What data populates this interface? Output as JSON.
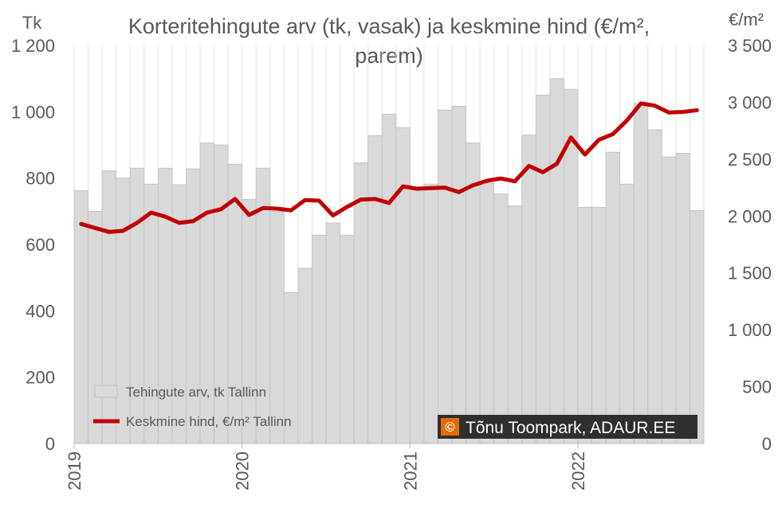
{
  "chart_data": {
    "type": "bar+line",
    "title_line1": "Korteritehingute arv (tk, vasak) ja keskmine hind (€/m²,",
    "title_line2": "parem)",
    "y_left_unit": "Tk",
    "y_right_unit": "€/m²",
    "y_left_range": [
      0,
      1200
    ],
    "y_right_range": [
      0,
      3500
    ],
    "y_left_ticks": [
      "0",
      "200",
      "400",
      "600",
      "800",
      "1 000",
      "1 200"
    ],
    "y_right_ticks": [
      "0",
      "500",
      "1 000",
      "1 500",
      "2 000",
      "2 500",
      "3 000",
      "3 500"
    ],
    "x_ticks": [
      "2019",
      "2020",
      "2021",
      "2022"
    ],
    "months": [
      "2019-01",
      "2019-02",
      "2019-03",
      "2019-04",
      "2019-05",
      "2019-06",
      "2019-07",
      "2019-08",
      "2019-09",
      "2019-10",
      "2019-11",
      "2019-12",
      "2020-01",
      "2020-02",
      "2020-03",
      "2020-04",
      "2020-05",
      "2020-06",
      "2020-07",
      "2020-08",
      "2020-09",
      "2020-10",
      "2020-11",
      "2020-12",
      "2021-01",
      "2021-02",
      "2021-03",
      "2021-04",
      "2021-05",
      "2021-06",
      "2021-07",
      "2021-08",
      "2021-09",
      "2021-10",
      "2021-11",
      "2021-12",
      "2022-01",
      "2022-02",
      "2022-03",
      "2022-04",
      "2022-05",
      "2022-06",
      "2022-07",
      "2022-08",
      "2022-09"
    ],
    "grid": "vertical",
    "legend_position": "bottom-left",
    "series": [
      {
        "name": "Tehingute arv, tk Tallinn",
        "type": "bar",
        "axis": "left",
        "color": "#d9d9d9",
        "values": [
          762,
          700,
          822,
          800,
          830,
          782,
          830,
          780,
          828,
          906,
          900,
          842,
          736,
          830,
          700,
          455,
          528,
          628,
          665,
          628,
          846,
          928,
          993,
          952,
          770,
          782,
          1005,
          1017,
          906,
          785,
          752,
          717,
          930,
          1050,
          1100,
          1068,
          712,
          712,
          878,
          782,
          1025,
          946,
          864,
          875,
          702
        ]
      },
      {
        "name": "Keskmine hind, €/m² Tallinn",
        "type": "line",
        "axis": "right",
        "color": "#c00000",
        "values": [
          1930,
          1895,
          1860,
          1870,
          1940,
          2030,
          1995,
          1940,
          1955,
          2030,
          2060,
          2150,
          2010,
          2070,
          2065,
          2050,
          2140,
          2135,
          2005,
          2080,
          2145,
          2150,
          2115,
          2260,
          2240,
          2245,
          2250,
          2210,
          2270,
          2310,
          2330,
          2305,
          2440,
          2385,
          2460,
          2690,
          2540,
          2670,
          2720,
          2840,
          2990,
          2970,
          2910,
          2915,
          2930
        ]
      }
    ]
  },
  "credit": {
    "icon": "©",
    "text": "Tõnu Toompark, ADAUR.EE",
    "icon_color": "#e36c0a",
    "box_color": "#2f2f2f"
  }
}
